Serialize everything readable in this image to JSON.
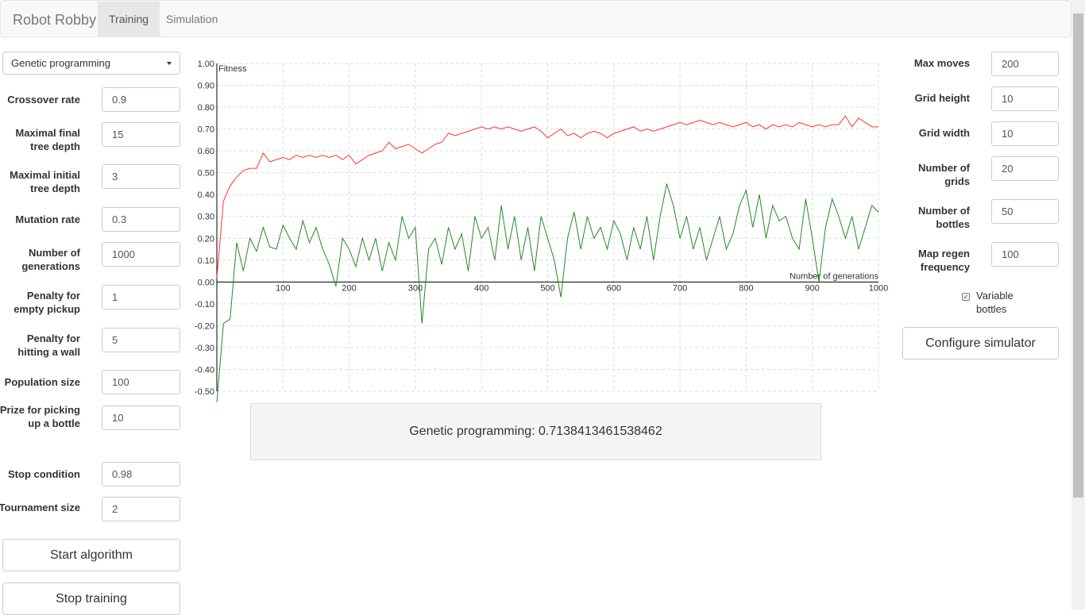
{
  "navbar": {
    "brand": "Robot Robby",
    "tabs": [
      "Training",
      "Simulation"
    ]
  },
  "left": {
    "algorithm_select": "Genetic programming",
    "fields": [
      {
        "label": "Crossover rate",
        "value": "0.9"
      },
      {
        "label": "Maximal final tree depth",
        "value": "15"
      },
      {
        "label": "Maximal initial tree depth",
        "value": "3"
      },
      {
        "label": "Mutation rate",
        "value": "0.3"
      },
      {
        "label": "Number of generations",
        "value": "1000"
      },
      {
        "label": "Penalty for empty pickup",
        "value": "1"
      },
      {
        "label": "Penalty for hitting a wall",
        "value": "5"
      },
      {
        "label": "Population size",
        "value": "100"
      },
      {
        "label": "Prize for picking up a bottle",
        "value": "10"
      },
      {
        "label": "Stop condition",
        "value": "0.98"
      },
      {
        "label": "Tournament size",
        "value": "2"
      }
    ],
    "buttons": [
      "Start algorithm",
      "Stop training"
    ]
  },
  "right": {
    "fields": [
      {
        "label": "Max moves",
        "value": "200"
      },
      {
        "label": "Grid height",
        "value": "10"
      },
      {
        "label": "Grid width",
        "value": "10"
      },
      {
        "label": "Number of grids",
        "value": "20"
      },
      {
        "label": "Number of bottles",
        "value": "50"
      },
      {
        "label": "Map regen frequency",
        "value": "100"
      }
    ],
    "checkbox_label": "Variable bottles",
    "button": "Configure simulator"
  },
  "chart_data": {
    "type": "line",
    "x_label": "Number of generations",
    "y_label": "Fitness",
    "xlim": [
      0,
      1000
    ],
    "xticks": [
      100,
      200,
      300,
      400,
      500,
      600,
      700,
      800,
      900,
      1000
    ],
    "ylim": [
      -0.5,
      1.0
    ],
    "yticks": [
      {
        "value": -0.5,
        "label": "-0.50"
      },
      {
        "value": -0.4,
        "label": "-0.40"
      },
      {
        "value": -0.3,
        "label": "-0.30"
      },
      {
        "value": -0.2,
        "label": "-0.20"
      },
      {
        "value": -0.1,
        "label": "-0.10"
      },
      {
        "value": 0,
        "label": "0.00"
      },
      {
        "value": 0.1,
        "label": "0.10"
      },
      {
        "value": 0.2,
        "label": "0.20"
      },
      {
        "value": 0.3,
        "label": "0.30"
      },
      {
        "value": 0.4,
        "label": "0.40"
      },
      {
        "value": 0.5,
        "label": "0.50"
      },
      {
        "value": 0.6,
        "label": "0.60"
      },
      {
        "value": 0.7,
        "label": "0.70"
      },
      {
        "value": 0.8,
        "label": "0.80"
      },
      {
        "value": 0.9,
        "label": "0.90"
      },
      {
        "value": 1.0,
        "label": "1.00"
      }
    ],
    "grid": true,
    "x": [
      0,
      10,
      20,
      30,
      40,
      50,
      60,
      70,
      80,
      90,
      100,
      110,
      120,
      130,
      140,
      150,
      160,
      170,
      180,
      190,
      200,
      210,
      220,
      230,
      240,
      250,
      260,
      270,
      280,
      290,
      300,
      310,
      320,
      330,
      340,
      350,
      360,
      370,
      380,
      390,
      400,
      410,
      420,
      430,
      440,
      450,
      460,
      470,
      480,
      490,
      500,
      510,
      520,
      530,
      540,
      550,
      560,
      570,
      580,
      590,
      600,
      610,
      620,
      630,
      640,
      650,
      660,
      670,
      680,
      690,
      700,
      710,
      720,
      730,
      740,
      750,
      760,
      770,
      780,
      790,
      800,
      810,
      820,
      830,
      840,
      850,
      860,
      870,
      880,
      890,
      900,
      910,
      920,
      930,
      940,
      950,
      960,
      970,
      980,
      990,
      1000
    ],
    "series": [
      {
        "color": "#ff3333",
        "values": [
          0.02,
          0.37,
          0.44,
          0.48,
          0.51,
          0.52,
          0.52,
          0.59,
          0.55,
          0.56,
          0.57,
          0.56,
          0.58,
          0.57,
          0.58,
          0.57,
          0.58,
          0.57,
          0.58,
          0.56,
          0.58,
          0.54,
          0.56,
          0.58,
          0.59,
          0.6,
          0.64,
          0.61,
          0.62,
          0.63,
          0.61,
          0.59,
          0.61,
          0.63,
          0.64,
          0.68,
          0.67,
          0.68,
          0.69,
          0.7,
          0.71,
          0.7,
          0.71,
          0.7,
          0.71,
          0.7,
          0.69,
          0.7,
          0.71,
          0.69,
          0.66,
          0.68,
          0.7,
          0.67,
          0.68,
          0.66,
          0.68,
          0.69,
          0.68,
          0.66,
          0.68,
          0.69,
          0.7,
          0.71,
          0.69,
          0.7,
          0.69,
          0.7,
          0.71,
          0.72,
          0.73,
          0.72,
          0.73,
          0.74,
          0.73,
          0.72,
          0.73,
          0.72,
          0.71,
          0.72,
          0.73,
          0.71,
          0.72,
          0.7,
          0.72,
          0.71,
          0.72,
          0.71,
          0.73,
          0.72,
          0.71,
          0.72,
          0.71,
          0.72,
          0.72,
          0.76,
          0.71,
          0.75,
          0.73,
          0.71,
          0.71
        ]
      },
      {
        "color": "#228b22",
        "values": [
          -0.55,
          -0.19,
          -0.17,
          0.18,
          0.05,
          0.2,
          0.14,
          0.25,
          0.16,
          0.15,
          0.26,
          0.2,
          0.15,
          0.28,
          0.18,
          0.25,
          0.15,
          0.08,
          -0.02,
          0.2,
          0.15,
          0.07,
          0.2,
          0.1,
          0.2,
          0.05,
          0.18,
          0.1,
          0.3,
          0.2,
          0.25,
          -0.19,
          0.15,
          0.2,
          0.08,
          0.25,
          0.15,
          0.22,
          0.05,
          0.3,
          0.2,
          0.25,
          0.1,
          0.35,
          0.15,
          0.3,
          0.1,
          0.25,
          0.05,
          0.3,
          0.2,
          0.1,
          -0.07,
          0.2,
          0.32,
          0.15,
          0.3,
          0.2,
          0.25,
          0.15,
          0.28,
          0.22,
          0.1,
          0.25,
          0.15,
          0.3,
          0.1,
          0.3,
          0.45,
          0.35,
          0.2,
          0.3,
          0.15,
          0.25,
          0.1,
          0.2,
          0.3,
          0.15,
          0.22,
          0.35,
          0.42,
          0.25,
          0.4,
          0.2,
          0.35,
          0.28,
          0.3,
          0.2,
          0.15,
          0.38,
          0.2,
          0.0,
          0.25,
          0.38,
          0.3,
          0.2,
          0.3,
          0.15,
          0.25,
          0.35,
          0.32
        ]
      }
    ]
  },
  "result": "Genetic programming: 0.7138413461538462"
}
